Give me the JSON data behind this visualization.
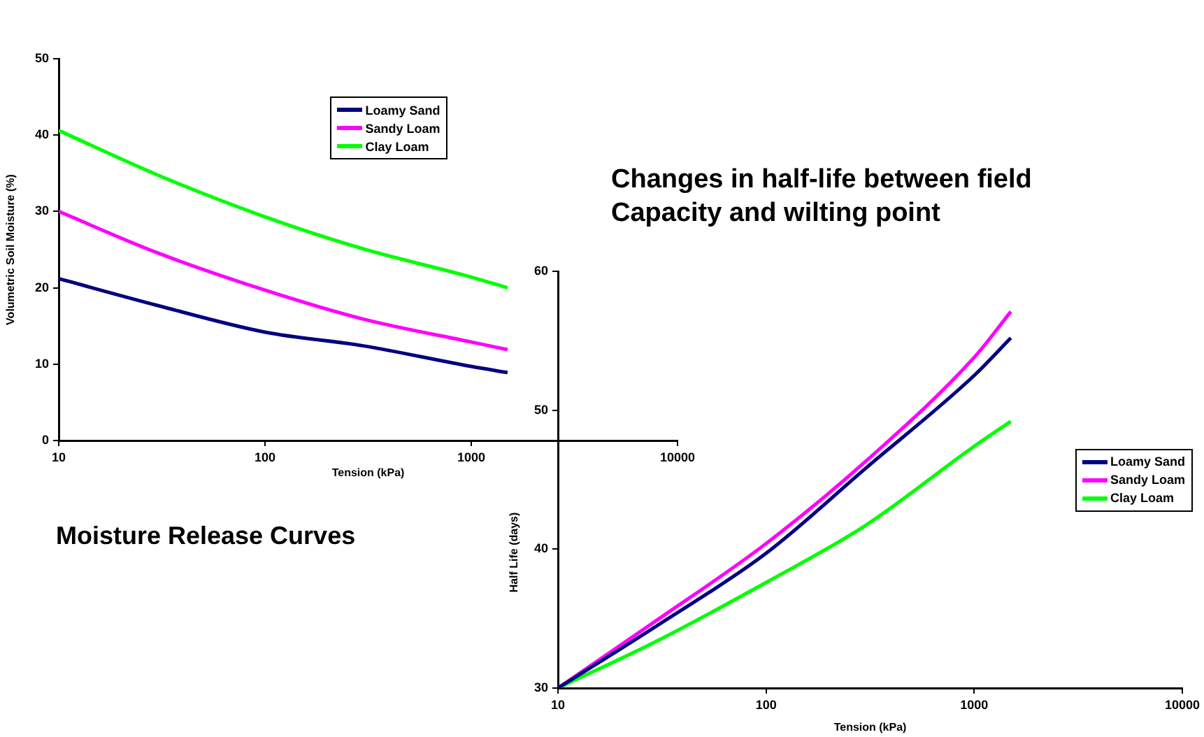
{
  "chart_data": [
    {
      "type": "line",
      "xlabel": "Tension (kPa)",
      "ylabel": "Volumetric Soil Moisture (%)",
      "log": "x",
      "xlim": [
        10,
        10000
      ],
      "xticks": [
        10,
        100,
        1000,
        10000
      ],
      "ylim": [
        0,
        50
      ],
      "yticks": [
        0,
        10,
        20,
        30,
        40,
        50
      ],
      "legend": "top",
      "annotations": [
        "Moisture Release Curves"
      ],
      "x": [
        10,
        30,
        100,
        300,
        1000,
        1500
      ],
      "series": [
        {
          "name": "Loamy Sand",
          "color": "#000080",
          "values": [
            21.2,
            17.7,
            14.2,
            12.4,
            9.7,
            8.9
          ]
        },
        {
          "name": "Sandy Loam",
          "color": "#ff00ff",
          "values": [
            30,
            24.6,
            19.7,
            15.9,
            12.9,
            11.9
          ]
        },
        {
          "name": "Clay Loam",
          "color": "#00ff00",
          "values": [
            40.6,
            34.8,
            29.3,
            25.1,
            21.4,
            20
          ]
        }
      ]
    },
    {
      "type": "line",
      "title": "Changes in half-life between field Capacity and wilting point",
      "xlabel": "Tension (kPa)",
      "ylabel": "Half Life (days)",
      "log": "x",
      "xlim": [
        10,
        10000
      ],
      "xticks": [
        10,
        100,
        1000,
        10000
      ],
      "ylim": [
        30,
        60
      ],
      "yticks": [
        30,
        40,
        50,
        60
      ],
      "legend": "right",
      "x": [
        10,
        30,
        100,
        300,
        1000,
        1500
      ],
      "series": [
        {
          "name": "Loamy Sand",
          "color": "#000080",
          "values": [
            30,
            34.5,
            39.7,
            45.8,
            52.5,
            55.2
          ]
        },
        {
          "name": "Sandy Loam",
          "color": "#ff00ff",
          "values": [
            30,
            34.9,
            40.4,
            46.3,
            53.8,
            57.1
          ]
        },
        {
          "name": "Clay Loam",
          "color": "#00ff00",
          "values": [
            30,
            33.4,
            37.6,
            41.7,
            47.4,
            49.2
          ]
        }
      ]
    }
  ]
}
